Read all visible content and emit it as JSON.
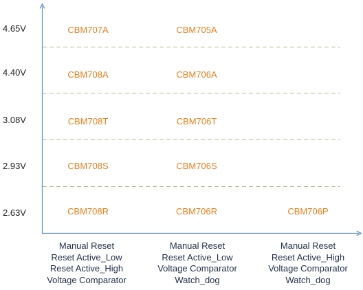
{
  "colors": {
    "axis": "#5b8fc3",
    "dash": "#b9b98a",
    "part_text": "#e97f1b",
    "label_text": "#1f2f45"
  },
  "y_levels": [
    "4.65V",
    "4.40V",
    "3.08V",
    "2.93V",
    "2.63V"
  ],
  "columns": [
    {
      "lines": [
        "Manual Reset",
        "Reset Active_Low",
        "Reset Active_High",
        "Voltage Comparator"
      ]
    },
    {
      "lines": [
        "Manual Reset",
        "Reset Active_Low",
        "Voltage Comparator",
        "Watch_dog"
      ]
    },
    {
      "lines": [
        "Manual Reset",
        "Reset Active_High",
        "Voltage Comparator",
        "Watch_dog"
      ]
    }
  ],
  "parts": [
    [
      "CBM707A",
      "CBM705A",
      ""
    ],
    [
      "CBM708A",
      "CBM706A",
      ""
    ],
    [
      "CBM708T",
      "CBM706T",
      ""
    ],
    [
      "CBM708S",
      "CBM706S",
      ""
    ],
    [
      "CBM708R",
      "CBM706R",
      "CBM706P"
    ]
  ]
}
